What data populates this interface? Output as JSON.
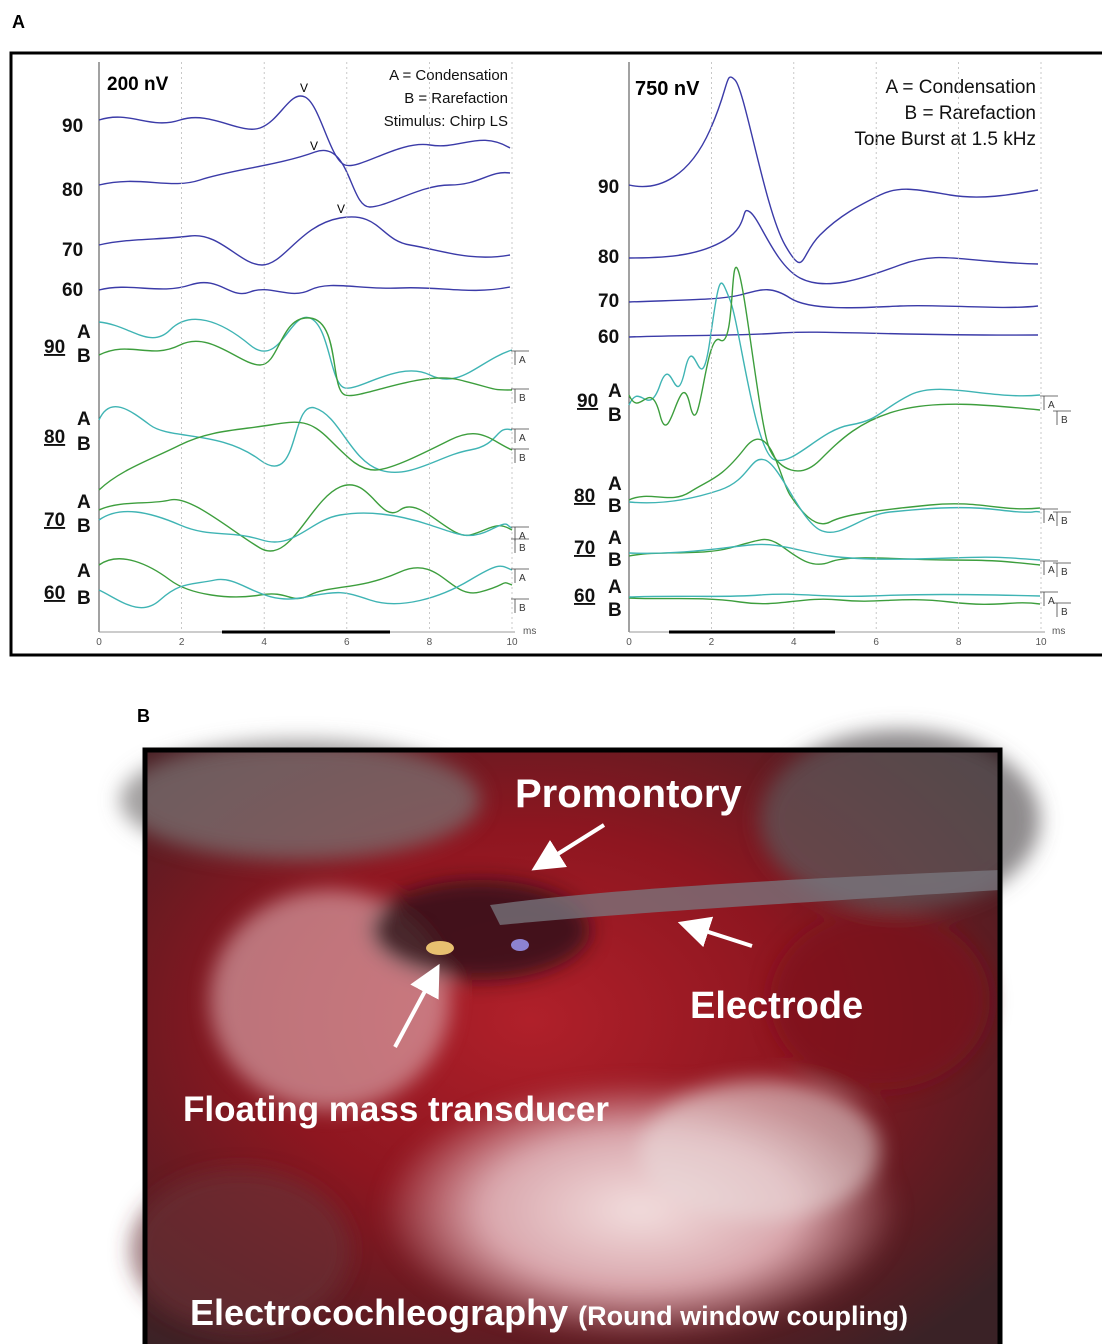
{
  "panel_a": {
    "label": "A",
    "left": {
      "scale": "200 nV",
      "legend": [
        "A = Condensation",
        "B = Rarefaction",
        "Stimulus: Chirp LS"
      ],
      "levels": [
        "90",
        "80",
        "70",
        "60"
      ],
      "ab": [
        "A",
        "B"
      ],
      "peak_label": "V",
      "xticks": [
        0,
        2,
        4,
        6,
        8,
        10
      ],
      "x_unit": "ms"
    },
    "right": {
      "scale": "750 nV",
      "legend": [
        "A = Condensation",
        "B = Rarefaction",
        "Tone Burst at 1.5 kHz"
      ],
      "levels": [
        "90",
        "80",
        "70",
        "60"
      ],
      "ab": [
        "A",
        "B"
      ],
      "xticks": [
        0,
        2,
        4,
        6,
        8,
        10
      ],
      "x_unit": "ms"
    }
  },
  "panel_b": {
    "label": "B",
    "promontory": "Promontory",
    "electrode": "Electrode",
    "transducer": "Floating mass transducer",
    "caption": "Electrocochleography",
    "caption_note": "(Round window coupling)"
  }
}
